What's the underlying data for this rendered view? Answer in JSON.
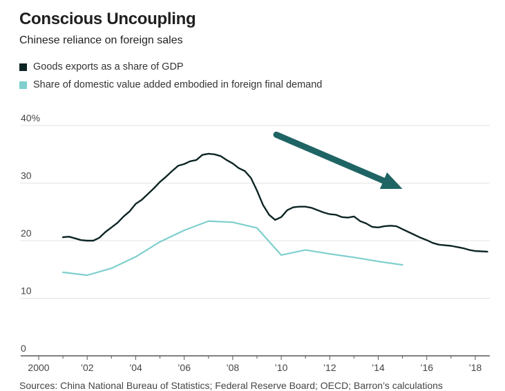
{
  "header": {
    "title": "Conscious Uncoupling",
    "subtitle": "Chinese reliance on foreign sales"
  },
  "source": "Sources: China National Bureau of Statistics; Federal Reserve Board; OECD; Barron’s calculations",
  "colors": {
    "exports": "#0d2424",
    "value_added": "#7ecfcd",
    "arrow": "#1f6464",
    "grid": "#e3e3e3",
    "axis": "#555555"
  },
  "chart_data": {
    "type": "line",
    "title": "Conscious Uncoupling",
    "subtitle": "Chinese reliance on foreign sales",
    "xlabel": "",
    "ylabel": "",
    "xlim": [
      2000,
      2018.6
    ],
    "ylim": [
      0,
      40
    ],
    "y_ticks": [
      {
        "value": 0,
        "label": "0"
      },
      {
        "value": 10,
        "label": "10"
      },
      {
        "value": 20,
        "label": "20"
      },
      {
        "value": 30,
        "label": "30"
      },
      {
        "value": 40,
        "label": "40%"
      }
    ],
    "x_ticks": [
      {
        "value": 2000,
        "label": "2000"
      },
      {
        "value": 2002,
        "label": "’02"
      },
      {
        "value": 2004,
        "label": "’04"
      },
      {
        "value": 2006,
        "label": "’06"
      },
      {
        "value": 2008,
        "label": "’08"
      },
      {
        "value": 2010,
        "label": "’10"
      },
      {
        "value": 2012,
        "label": "’12"
      },
      {
        "value": 2014,
        "label": "’14"
      },
      {
        "value": 2016,
        "label": "’16"
      },
      {
        "value": 2018,
        "label": "’18"
      }
    ],
    "grid": true,
    "legend_position": "top-left",
    "series": [
      {
        "name": "Goods exports as a share of GDP",
        "color": "#0d2424",
        "points": [
          [
            2001.0,
            20.6
          ],
          [
            2001.25,
            20.7
          ],
          [
            2001.5,
            20.4
          ],
          [
            2001.75,
            20.1
          ],
          [
            2002.0,
            20.0
          ],
          [
            2002.25,
            20.0
          ],
          [
            2002.5,
            20.5
          ],
          [
            2002.75,
            21.5
          ],
          [
            2003.0,
            22.3
          ],
          [
            2003.25,
            23.1
          ],
          [
            2003.5,
            24.2
          ],
          [
            2003.75,
            25.1
          ],
          [
            2004.0,
            26.4
          ],
          [
            2004.25,
            27.1
          ],
          [
            2004.5,
            28.1
          ],
          [
            2004.75,
            29.1
          ],
          [
            2005.0,
            30.2
          ],
          [
            2005.25,
            31.1
          ],
          [
            2005.5,
            32.1
          ],
          [
            2005.75,
            33.0
          ],
          [
            2006.0,
            33.3
          ],
          [
            2006.25,
            33.8
          ],
          [
            2006.5,
            34.0
          ],
          [
            2006.75,
            34.9
          ],
          [
            2007.0,
            35.1
          ],
          [
            2007.25,
            35.0
          ],
          [
            2007.5,
            34.7
          ],
          [
            2007.75,
            34.0
          ],
          [
            2008.0,
            33.4
          ],
          [
            2008.25,
            32.6
          ],
          [
            2008.5,
            32.1
          ],
          [
            2008.75,
            30.9
          ],
          [
            2009.0,
            28.7
          ],
          [
            2009.25,
            26.2
          ],
          [
            2009.5,
            24.5
          ],
          [
            2009.75,
            23.6
          ],
          [
            2010.0,
            24.1
          ],
          [
            2010.25,
            25.3
          ],
          [
            2010.5,
            25.8
          ],
          [
            2010.75,
            25.9
          ],
          [
            2011.0,
            25.9
          ],
          [
            2011.25,
            25.7
          ],
          [
            2011.5,
            25.3
          ],
          [
            2011.75,
            24.9
          ],
          [
            2012.0,
            24.6
          ],
          [
            2012.25,
            24.5
          ],
          [
            2012.5,
            24.1
          ],
          [
            2012.75,
            24.0
          ],
          [
            2013.0,
            24.2
          ],
          [
            2013.25,
            23.4
          ],
          [
            2013.5,
            23.0
          ],
          [
            2013.75,
            22.4
          ],
          [
            2014.0,
            22.3
          ],
          [
            2014.25,
            22.5
          ],
          [
            2014.5,
            22.6
          ],
          [
            2014.75,
            22.5
          ],
          [
            2015.0,
            22.0
          ],
          [
            2015.25,
            21.5
          ],
          [
            2015.5,
            21.0
          ],
          [
            2015.75,
            20.5
          ],
          [
            2016.0,
            20.1
          ],
          [
            2016.25,
            19.6
          ],
          [
            2016.5,
            19.3
          ],
          [
            2016.75,
            19.2
          ],
          [
            2017.0,
            19.1
          ],
          [
            2017.25,
            18.9
          ],
          [
            2017.5,
            18.7
          ],
          [
            2017.75,
            18.4
          ],
          [
            2018.0,
            18.2
          ],
          [
            2018.5,
            18.1
          ]
        ]
      },
      {
        "name": "Share of domestic value added embodied in foreign final demand",
        "color": "#7ecfcd",
        "points": [
          [
            2001,
            14.5
          ],
          [
            2002,
            14.0
          ],
          [
            2003,
            15.2
          ],
          [
            2004,
            17.2
          ],
          [
            2005,
            19.8
          ],
          [
            2006,
            21.8
          ],
          [
            2007,
            23.4
          ],
          [
            2008,
            23.2
          ],
          [
            2009,
            22.2
          ],
          [
            2010,
            17.5
          ],
          [
            2011,
            18.4
          ],
          [
            2012,
            17.7
          ],
          [
            2013,
            17.1
          ],
          [
            2014,
            16.4
          ],
          [
            2015,
            15.8
          ]
        ]
      }
    ],
    "annotations": [
      {
        "type": "arrow",
        "description": "downward trend",
        "from": [
          2009.8,
          38.4
        ],
        "to": [
          2015.0,
          29.0
        ]
      }
    ]
  }
}
